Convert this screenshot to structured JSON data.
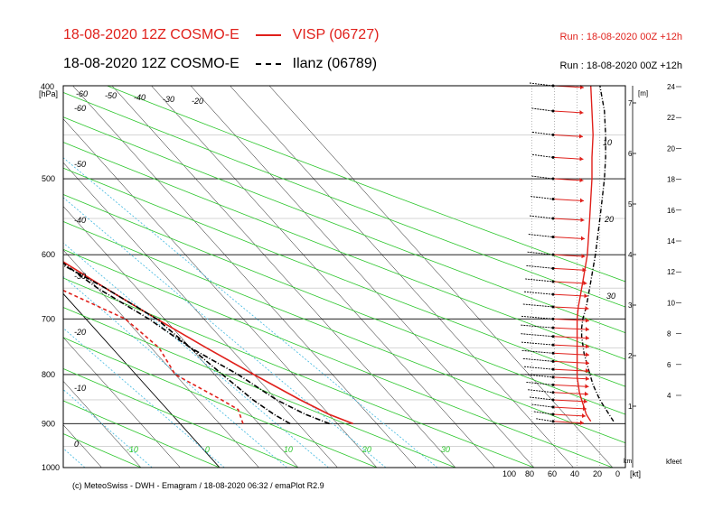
{
  "header": {
    "title_visp": "18-08-2020 12Z COSMO-E",
    "legend_visp": "VISP (06727)",
    "title_ilanz": "18-08-2020 12Z COSMO-E",
    "legend_ilanz": "Ilanz (06789)",
    "run_visp": "Run : 18-08-2020 00Z +12h",
    "run_ilanz": "Run : 18-08-2020 00Z +12h"
  },
  "footer": "(c) MeteoSwiss - DWH - Emagram / 18-08-2020  06:32 / emaPlot R2.9",
  "colors": {
    "visp": "#e0201b",
    "ilanz": "#000000",
    "dry_adiabat": "#2cc62c",
    "mixing_ratio": "#3fb8e0",
    "isotherm": "#000000"
  },
  "chart_data": {
    "type": "emagram",
    "y_unit": "[hPa]",
    "pressure_ticks": [
      "400",
      "500",
      "600",
      "700",
      "800",
      "900",
      "1000"
    ],
    "pressure_range": [
      400,
      1000
    ],
    "temp_labels": [
      "-60",
      "-50",
      "-40",
      "-30",
      "-20",
      "-10",
      "0",
      "10",
      "20",
      "30"
    ],
    "adiabat_labels": [
      "-60",
      "-50",
      "-40",
      "-30",
      "-20",
      "-10",
      "0",
      "10",
      "20",
      "30"
    ],
    "wind_axis_label": "[kt]",
    "wind_ticks": [
      "100",
      "80",
      "60",
      "40",
      "20",
      "0"
    ],
    "km_label": "km",
    "km_ticks": [
      "1",
      "2",
      "3",
      "4",
      "5",
      "6",
      "7"
    ],
    "m_label": "[m]",
    "wind_curve_labels": [
      "10",
      "20",
      "30"
    ],
    "kfeet_label": "kfeet",
    "kfeet_ticks": [
      "4",
      "6",
      "8",
      "10",
      "12",
      "14",
      "16",
      "18",
      "20",
      "22",
      "24"
    ],
    "series": [
      {
        "name": "VISP (06727) temperature",
        "p": [
          900,
          880,
          850,
          800,
          750,
          700,
          650,
          600,
          550,
          500,
          450,
          400
        ],
        "t": [
          22,
          20,
          18,
          15,
          12,
          9,
          6,
          3,
          0,
          -4,
          -8,
          -13
        ]
      },
      {
        "name": "VISP (06727) dewpoint",
        "p": [
          900,
          870,
          850,
          800,
          750,
          700,
          650,
          600,
          550,
          520,
          500,
          480,
          460,
          440,
          420,
          400
        ],
        "t": [
          8,
          9,
          8,
          5,
          6,
          5,
          0,
          -6,
          -12,
          -17,
          -23,
          -25,
          -24,
          -20,
          -16,
          -14
        ]
      },
      {
        "name": "Ilanz (06789) temperature",
        "p": [
          900,
          880,
          850,
          800,
          750,
          700,
          650,
          600,
          550,
          500,
          450,
          400
        ],
        "t": [
          19,
          17,
          15,
          13,
          10,
          8,
          5,
          3,
          0,
          -4,
          -8,
          -13
        ]
      },
      {
        "name": "Ilanz (06789) dewpoint",
        "p": [
          900,
          880,
          850,
          800,
          750,
          700,
          650,
          600,
          550,
          520,
          500,
          480,
          460,
          440,
          420,
          400
        ],
        "t": [
          14,
          13,
          12,
          11,
          10,
          9,
          6,
          2,
          -3,
          -7,
          -13,
          -18,
          -22,
          -22,
          -20,
          -16
        ]
      }
    ],
    "wind_visp": {
      "p": [
        895,
        880,
        865,
        850,
        835,
        820,
        805,
        790,
        775,
        760,
        745,
        730,
        715,
        700,
        680,
        660,
        640,
        620,
        600,
        575,
        550,
        525,
        500,
        475,
        450,
        425,
        400
      ],
      "speed": [
        28,
        32,
        34,
        36,
        38,
        39,
        40,
        40,
        40,
        40,
        40,
        40,
        40,
        40,
        39,
        37,
        35,
        33,
        31,
        30,
        29,
        28,
        27,
        27,
        26,
        27,
        28
      ]
    },
    "wind_ilanz": {
      "p": [
        895,
        880,
        865,
        850,
        835,
        820,
        805,
        790,
        775,
        760,
        745,
        730,
        715,
        700,
        680,
        660,
        640,
        620,
        600,
        575,
        550,
        525,
        500,
        475,
        450,
        425,
        400
      ],
      "speed": [
        8,
        12,
        16,
        20,
        23,
        26,
        28,
        30,
        32,
        34,
        35,
        36,
        36,
        35,
        32,
        30,
        28,
        26,
        24,
        22,
        20,
        18,
        16,
        15,
        15,
        16,
        20
      ]
    }
  }
}
